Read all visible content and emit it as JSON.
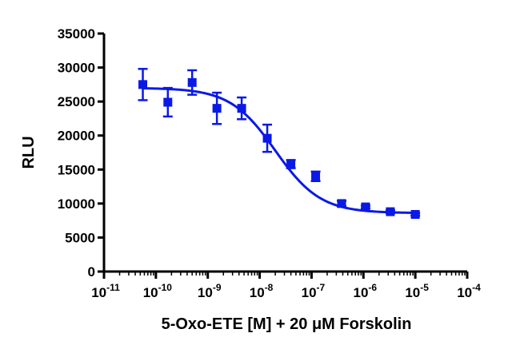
{
  "chart_data": {
    "type": "scatter",
    "xlabel": "5-Oxo-ETE [M] + 20 μM Forskolin",
    "ylabel": "RLU",
    "xscale": "log",
    "xlim": [
      1e-11,
      0.0001
    ],
    "ylim": [
      0,
      35000
    ],
    "grid": false,
    "x_ticks": [
      {
        "value": 1e-11,
        "base": "10",
        "exp": "-11"
      },
      {
        "value": 1e-10,
        "base": "10",
        "exp": "-10"
      },
      {
        "value": 1e-09,
        "base": "10",
        "exp": "-9"
      },
      {
        "value": 1e-08,
        "base": "10",
        "exp": "-8"
      },
      {
        "value": 1e-07,
        "base": "10",
        "exp": "-7"
      },
      {
        "value": 1e-06,
        "base": "10",
        "exp": "-6"
      },
      {
        "value": 1e-05,
        "base": "10",
        "exp": "-5"
      },
      {
        "value": 0.0001,
        "base": "10",
        "exp": "-4"
      }
    ],
    "y_ticks": [
      0,
      5000,
      10000,
      15000,
      20000,
      25000,
      30000,
      35000
    ],
    "series": [
      {
        "color": "#0a19e6",
        "marker": "square",
        "points": [
          {
            "x": 5.6e-11,
            "y": 27500,
            "err": 2300
          },
          {
            "x": 1.7e-10,
            "y": 24900,
            "err": 2100
          },
          {
            "x": 5e-10,
            "y": 27800,
            "err": 1800
          },
          {
            "x": 1.5e-09,
            "y": 24000,
            "err": 2300
          },
          {
            "x": 4.5e-09,
            "y": 24000,
            "err": 1600
          },
          {
            "x": 1.4e-08,
            "y": 19600,
            "err": 2000
          },
          {
            "x": 4e-08,
            "y": 15800,
            "err": 600
          },
          {
            "x": 1.2e-07,
            "y": 14000,
            "err": 700
          },
          {
            "x": 3.8e-07,
            "y": 10000,
            "err": 400
          },
          {
            "x": 1.1e-06,
            "y": 9500,
            "err": 200
          },
          {
            "x": 3.3e-06,
            "y": 8800,
            "err": 200
          },
          {
            "x": 1e-05,
            "y": 8400,
            "err": 200
          }
        ],
        "fit": {
          "type": "sigmoidal dose-response",
          "top": 27000,
          "bottom": 8600,
          "log_ec50": -7.7,
          "hill_slope": -1.0
        }
      }
    ]
  }
}
